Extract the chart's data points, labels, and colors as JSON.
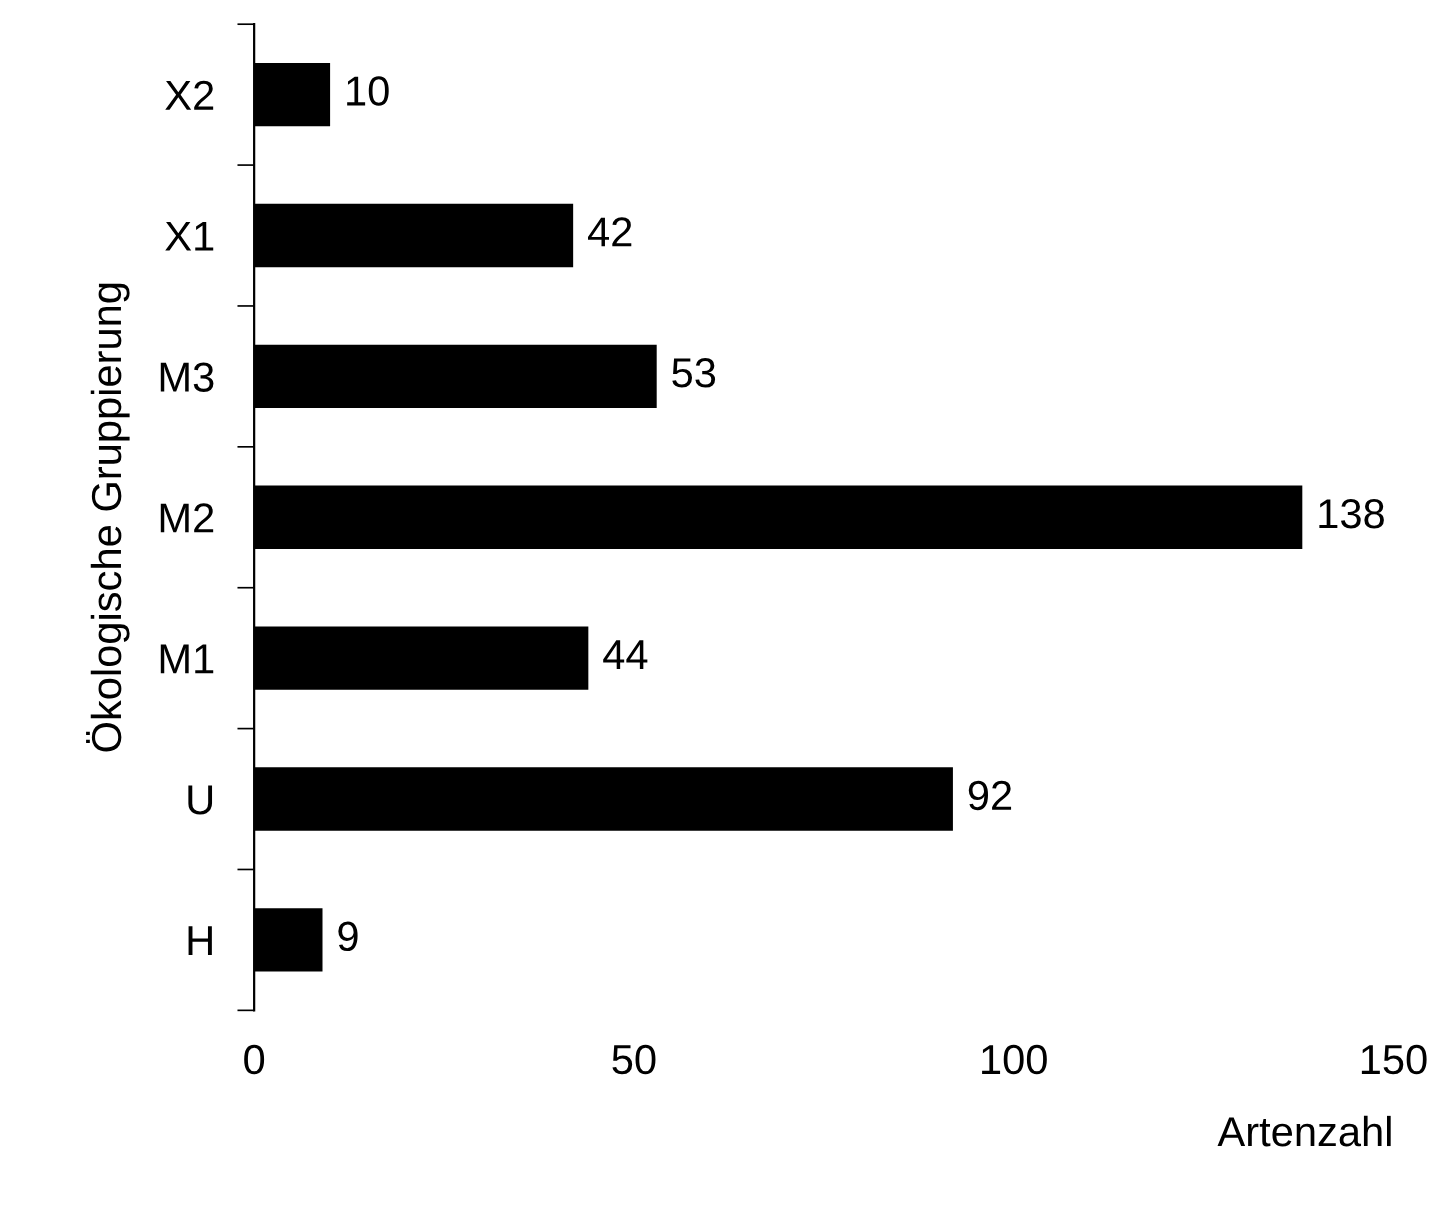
{
  "chart_data": {
    "type": "bar",
    "orientation": "horizontal",
    "xlabel": "Artenzahl",
    "ylabel": "Ökologische Gruppierung",
    "categories": [
      "X2",
      "X1",
      "M3",
      "M2",
      "M1",
      "U",
      "H"
    ],
    "values": [
      10,
      42,
      53,
      138,
      44,
      92,
      9
    ],
    "color": "#000000",
    "xlim": [
      0,
      150
    ],
    "xticks": [
      0,
      50,
      100,
      150
    ],
    "data_labels": true,
    "grid": false,
    "legend": false
  }
}
